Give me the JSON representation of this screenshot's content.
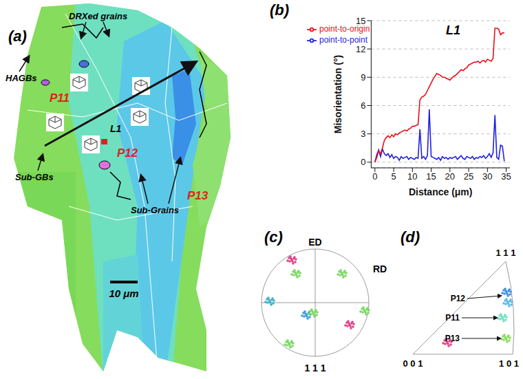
{
  "chart_data": {
    "type": "line",
    "panel_label": "(b)",
    "annotations": [
      "L1"
    ],
    "xlabel": "Distance (μm)",
    "ylabel": "Misorientation (°)",
    "x": [
      0,
      0.5,
      1,
      1.5,
      2,
      2.5,
      3,
      3.5,
      4,
      4.5,
      5,
      5.5,
      6,
      6.5,
      7,
      7.5,
      8,
      8.5,
      9,
      9.5,
      10,
      10.5,
      11,
      11.5,
      12,
      12.5,
      13,
      13.5,
      14,
      14.5,
      15,
      15.5,
      16,
      16.5,
      17,
      17.5,
      18,
      18.5,
      19,
      19.5,
      20,
      20.5,
      21,
      21.5,
      22,
      22.5,
      23,
      23.5,
      24,
      24.5,
      25,
      25.5,
      26,
      26.5,
      27,
      27.5,
      28,
      28.5,
      29,
      29.5,
      30,
      30.5,
      31,
      31.5,
      32,
      32.5,
      33,
      33.5,
      34,
      34.5
    ],
    "series": [
      {
        "name": "point-to-point",
        "color": "#1f1fe0",
        "values": [
          0,
          0.8,
          1.3,
          0.6,
          1.4,
          0.9,
          0.7,
          0.9,
          0.5,
          0.8,
          0.4,
          0.6,
          0.5,
          0.2,
          0.6,
          0.4,
          0.5,
          0.6,
          0.3,
          0.5,
          0.4,
          0.3,
          0.5,
          0.4,
          3.5,
          0.4,
          0.6,
          0.3,
          0.7,
          5.6,
          0.6,
          0.5,
          0.4,
          0.3,
          0.5,
          0.2,
          0.6,
          0.4,
          0.5,
          0.3,
          0.5,
          0.4,
          0.5,
          0.6,
          0.3,
          0.5,
          0.7,
          0.4,
          0.3,
          0.6,
          0.5,
          0.4,
          0.6,
          0.3,
          0.5,
          0.4,
          0.6,
          0.5,
          0.7,
          0.4,
          0.6,
          0.9,
          0.5,
          1.0,
          5.0,
          0.5,
          0.3,
          1.8,
          1.7,
          0.1
        ]
      },
      {
        "name": "point-to-origin",
        "color": "#e8101a",
        "values": [
          0,
          0.5,
          1.2,
          0.9,
          1.5,
          2.3,
          2.6,
          2.8,
          2.6,
          2.9,
          2.7,
          3.0,
          2.9,
          3.1,
          3.2,
          3.3,
          3.4,
          3.3,
          3.5,
          3.6,
          3.8,
          3.8,
          3.9,
          4.0,
          6.6,
          6.9,
          7.0,
          7.2,
          7.6,
          8.0,
          8.4,
          8.8,
          9.1,
          9.4,
          9.3,
          9.2,
          9.0,
          9.0,
          8.9,
          8.8,
          8.7,
          8.9,
          9.1,
          9.2,
          9.4,
          9.6,
          9.8,
          9.7,
          9.9,
          10.0,
          10.3,
          10.4,
          10.5,
          10.6,
          10.6,
          10.7,
          10.5,
          10.7,
          10.8,
          10.6,
          10.9,
          10.8,
          10.7,
          11.0,
          14.2,
          14.2,
          14.1,
          13.5,
          13.7,
          13.7
        ]
      }
    ],
    "xlim": [
      -1,
      36
    ],
    "xticks": [
      0,
      5,
      10,
      15,
      20,
      25,
      30,
      35
    ],
    "ylim": [
      -0.6,
      15
    ],
    "yticks": [
      0,
      3,
      6,
      9,
      12,
      15
    ],
    "grid": true,
    "legend": "upper left"
  },
  "panel_a": {
    "panel_label": "(a)",
    "labels": {
      "hagbs": "HAGBs",
      "drx": "DRXed grains",
      "p11": "P11",
      "p12": "P12",
      "p13": "P13",
      "l1": "L1",
      "subgbs": "Sub-GBs",
      "subgrains": "Sub-Grains"
    },
    "scale_bar": "10 μm"
  },
  "panel_c": {
    "panel_label": "(c)",
    "top": "ED",
    "right": "RD",
    "bottom": "1 1 1"
  },
  "panel_d": {
    "panel_label": "(d)",
    "corners": {
      "top": "1 1 1",
      "left": "0 0 1",
      "right": "1 0 1"
    },
    "points": [
      "P12",
      "P11",
      "P13"
    ]
  }
}
